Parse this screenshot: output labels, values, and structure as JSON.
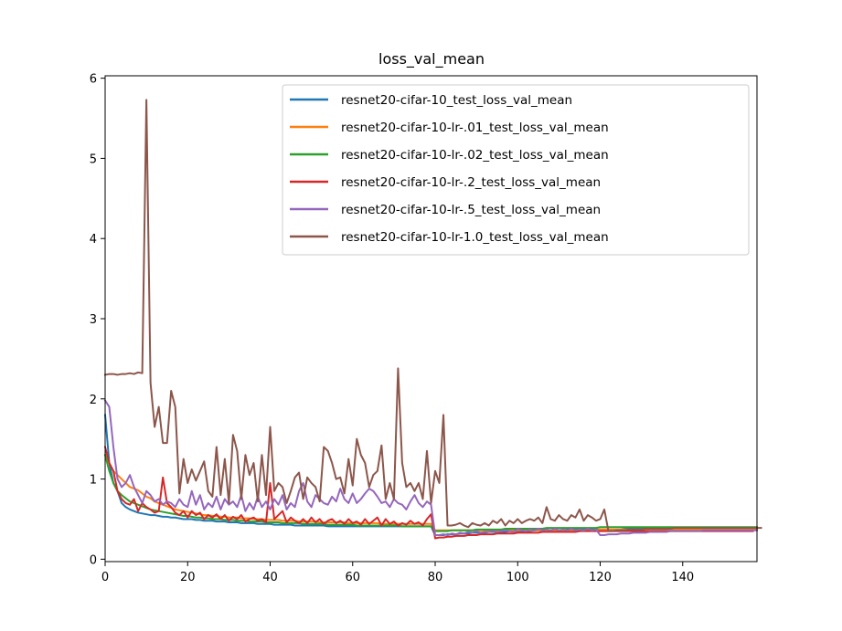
{
  "chart_data": {
    "type": "line",
    "title": "loss_val_mean",
    "xlabel": "",
    "ylabel": "",
    "xlim": [
      0,
      158
    ],
    "ylim": [
      -0.03,
      6.03
    ],
    "xticks": [
      0,
      20,
      40,
      60,
      80,
      100,
      120,
      140
    ],
    "yticks": [
      0,
      1,
      2,
      3,
      4,
      5,
      6
    ],
    "grid": false,
    "legend_position": "top-right",
    "series": [
      {
        "name": "resnet20-cifar-10_test_loss_val_mean",
        "color": "#1f77b4",
        "y": [
          1.8,
          1.2,
          0.95,
          0.85,
          0.7,
          0.65,
          0.62,
          0.6,
          0.58,
          0.57,
          0.56,
          0.55,
          0.55,
          0.54,
          0.53,
          0.53,
          0.52,
          0.52,
          0.51,
          0.5,
          0.5,
          0.5,
          0.49,
          0.49,
          0.48,
          0.48,
          0.48,
          0.47,
          0.47,
          0.47,
          0.46,
          0.46,
          0.46,
          0.45,
          0.45,
          0.45,
          0.45,
          0.44,
          0.44,
          0.44,
          0.44,
          0.43,
          0.43,
          0.43,
          0.43,
          0.43,
          0.42,
          0.42,
          0.42,
          0.42,
          0.42,
          0.42,
          0.42,
          0.42,
          0.41,
          0.41,
          0.41,
          0.41,
          0.41,
          0.41,
          0.41,
          0.41,
          0.41,
          0.41,
          0.41,
          0.41,
          0.41,
          0.41,
          0.41,
          0.41,
          0.41,
          0.41,
          0.41,
          0.41,
          0.41,
          0.41,
          0.41,
          0.41,
          0.41,
          0.41,
          0.3,
          0.3,
          0.3,
          0.31,
          0.31,
          0.31,
          0.32,
          0.32,
          0.32,
          0.33,
          0.33,
          0.33,
          0.33,
          0.34,
          0.34,
          0.34,
          0.34,
          0.34,
          0.35,
          0.35,
          0.35,
          0.35,
          0.35,
          0.35,
          0.36,
          0.36,
          0.36,
          0.36,
          0.36,
          0.36,
          0.36,
          0.36,
          0.37,
          0.37,
          0.37,
          0.37,
          0.37,
          0.37,
          0.37,
          0.37,
          0.37,
          0.37,
          0.37,
          0.37,
          0.37,
          0.37,
          0.38,
          0.38,
          0.38,
          0.38,
          0.38,
          0.38,
          0.38,
          0.38,
          0.38,
          0.38,
          0.38,
          0.38,
          0.38,
          0.38,
          0.38,
          0.38,
          0.38,
          0.38,
          0.38,
          0.38,
          0.38,
          0.38,
          0.38,
          0.38,
          0.38,
          0.38,
          0.38,
          0.38,
          0.38,
          0.38,
          0.38,
          0.38
        ]
      },
      {
        "name": "resnet20-cifar-10-lr-.01_test_loss_val_mean",
        "color": "#ff7f0e",
        "y": [
          1.3,
          1.2,
          1.1,
          1.05,
          1.0,
          0.95,
          0.9,
          0.88,
          0.86,
          0.82,
          0.78,
          0.76,
          0.72,
          0.7,
          0.68,
          0.66,
          0.64,
          0.62,
          0.61,
          0.6,
          0.59,
          0.58,
          0.57,
          0.56,
          0.55,
          0.55,
          0.54,
          0.54,
          0.53,
          0.53,
          0.52,
          0.52,
          0.52,
          0.51,
          0.51,
          0.51,
          0.5,
          0.5,
          0.5,
          0.49,
          0.49,
          0.49,
          0.49,
          0.48,
          0.48,
          0.48,
          0.48,
          0.47,
          0.47,
          0.47,
          0.47,
          0.47,
          0.46,
          0.46,
          0.46,
          0.46,
          0.46,
          0.46,
          0.46,
          0.45,
          0.45,
          0.45,
          0.45,
          0.45,
          0.45,
          0.45,
          0.45,
          0.44,
          0.44,
          0.44,
          0.44,
          0.44,
          0.44,
          0.44,
          0.44,
          0.44,
          0.44,
          0.44,
          0.44,
          0.44,
          0.36,
          0.36,
          0.36,
          0.36,
          0.36,
          0.36,
          0.36,
          0.36,
          0.36,
          0.36,
          0.36,
          0.36,
          0.36,
          0.36,
          0.36,
          0.36,
          0.36,
          0.36,
          0.36,
          0.36,
          0.36,
          0.36,
          0.36,
          0.36,
          0.36,
          0.36,
          0.36,
          0.36,
          0.36,
          0.36,
          0.36,
          0.36,
          0.36,
          0.36,
          0.36,
          0.36,
          0.36,
          0.36,
          0.36,
          0.36,
          0.37,
          0.37,
          0.37,
          0.37,
          0.37,
          0.37,
          0.37,
          0.37,
          0.37,
          0.37,
          0.37,
          0.37,
          0.37,
          0.37,
          0.37,
          0.37,
          0.37,
          0.37,
          0.37,
          0.37,
          0.37,
          0.37,
          0.37,
          0.37,
          0.37,
          0.37,
          0.37,
          0.37,
          0.37,
          0.37,
          0.37,
          0.37,
          0.37,
          0.37,
          0.37,
          0.37,
          0.37,
          0.37,
          0.37
        ]
      },
      {
        "name": "resnet20-cifar-10-lr-.02_test_loss_val_mean",
        "color": "#2ca02c",
        "y": [
          1.3,
          1.1,
          0.95,
          0.85,
          0.8,
          0.76,
          0.72,
          0.7,
          0.68,
          0.66,
          0.64,
          0.62,
          0.61,
          0.6,
          0.59,
          0.58,
          0.57,
          0.56,
          0.55,
          0.54,
          0.54,
          0.53,
          0.52,
          0.52,
          0.51,
          0.51,
          0.5,
          0.5,
          0.5,
          0.49,
          0.49,
          0.49,
          0.48,
          0.48,
          0.48,
          0.47,
          0.47,
          0.47,
          0.47,
          0.46,
          0.46,
          0.46,
          0.46,
          0.45,
          0.45,
          0.45,
          0.45,
          0.45,
          0.44,
          0.44,
          0.44,
          0.44,
          0.44,
          0.44,
          0.43,
          0.43,
          0.43,
          0.43,
          0.43,
          0.43,
          0.43,
          0.42,
          0.42,
          0.42,
          0.42,
          0.42,
          0.42,
          0.42,
          0.42,
          0.42,
          0.42,
          0.42,
          0.41,
          0.41,
          0.41,
          0.41,
          0.41,
          0.41,
          0.41,
          0.41,
          0.35,
          0.35,
          0.35,
          0.35,
          0.36,
          0.36,
          0.36,
          0.36,
          0.36,
          0.36,
          0.37,
          0.37,
          0.37,
          0.37,
          0.37,
          0.37,
          0.37,
          0.38,
          0.38,
          0.38,
          0.38,
          0.38,
          0.38,
          0.38,
          0.38,
          0.38,
          0.38,
          0.39,
          0.39,
          0.39,
          0.39,
          0.39,
          0.39,
          0.39,
          0.39,
          0.39,
          0.39,
          0.39,
          0.39,
          0.39,
          0.4,
          0.4,
          0.4,
          0.4,
          0.4,
          0.4,
          0.4,
          0.4,
          0.4,
          0.4,
          0.4,
          0.4,
          0.4,
          0.4,
          0.4,
          0.4,
          0.4,
          0.4,
          0.4,
          0.4,
          0.4,
          0.4,
          0.4,
          0.4,
          0.4,
          0.4,
          0.4,
          0.4,
          0.4,
          0.4,
          0.4,
          0.4,
          0.4,
          0.4,
          0.4,
          0.4,
          0.4,
          0.4,
          0.4
        ]
      },
      {
        "name": "resnet20-cifar-10-lr-.2_test_loss_val_mean",
        "color": "#d62728",
        "y": [
          1.4,
          1.2,
          1.1,
          0.85,
          0.75,
          0.7,
          0.68,
          0.75,
          0.6,
          0.7,
          0.65,
          0.62,
          0.58,
          0.6,
          1.02,
          0.7,
          0.65,
          0.58,
          0.55,
          0.6,
          0.52,
          0.6,
          0.55,
          0.58,
          0.5,
          0.55,
          0.52,
          0.56,
          0.5,
          0.55,
          0.48,
          0.53,
          0.5,
          0.55,
          0.47,
          0.5,
          0.52,
          0.48,
          0.5,
          0.46,
          0.95,
          0.5,
          0.55,
          0.6,
          0.46,
          0.52,
          0.48,
          0.45,
          0.5,
          0.45,
          0.52,
          0.46,
          0.5,
          0.44,
          0.48,
          0.5,
          0.45,
          0.48,
          0.44,
          0.5,
          0.45,
          0.47,
          0.43,
          0.5,
          0.44,
          0.48,
          0.52,
          0.42,
          0.5,
          0.44,
          0.47,
          0.42,
          0.45,
          0.43,
          0.48,
          0.44,
          0.46,
          0.42,
          0.5,
          0.56,
          0.26,
          0.27,
          0.27,
          0.28,
          0.28,
          0.29,
          0.29,
          0.29,
          0.3,
          0.3,
          0.3,
          0.31,
          0.31,
          0.31,
          0.31,
          0.32,
          0.32,
          0.32,
          0.32,
          0.32,
          0.33,
          0.33,
          0.33,
          0.33,
          0.33,
          0.33,
          0.34,
          0.34,
          0.34,
          0.34,
          0.34,
          0.34,
          0.34,
          0.34,
          0.34,
          0.35,
          0.35,
          0.35,
          0.35,
          0.35,
          0.35,
          0.35,
          0.35,
          0.35,
          0.35,
          0.35,
          0.35,
          0.35,
          0.35,
          0.35,
          0.35,
          0.35,
          0.35,
          0.35,
          0.35,
          0.35,
          0.35,
          0.35,
          0.35,
          0.35,
          0.35,
          0.35,
          0.35,
          0.35,
          0.35,
          0.35,
          0.35,
          0.35,
          0.35,
          0.35,
          0.35,
          0.35,
          0.35,
          0.35,
          0.35,
          0.35,
          0.35,
          0.35
        ]
      },
      {
        "name": "resnet20-cifar-10-lr-.5_test_loss_val_mean",
        "color": "#9467bd",
        "y": [
          1.98,
          1.9,
          1.4,
          1.0,
          0.9,
          0.95,
          1.05,
          0.9,
          0.8,
          0.7,
          0.85,
          0.8,
          0.72,
          0.75,
          0.68,
          0.72,
          0.7,
          0.65,
          0.75,
          0.68,
          0.65,
          0.85,
          0.68,
          0.8,
          0.62,
          0.7,
          0.65,
          0.78,
          0.62,
          0.75,
          0.68,
          0.72,
          0.65,
          0.8,
          0.6,
          0.7,
          0.62,
          0.78,
          0.65,
          0.72,
          0.62,
          0.75,
          0.68,
          0.8,
          0.62,
          0.7,
          0.65,
          0.85,
          0.95,
          0.72,
          0.65,
          0.8,
          0.75,
          0.7,
          0.68,
          0.78,
          0.72,
          0.88,
          0.75,
          0.7,
          0.82,
          0.7,
          0.75,
          0.82,
          0.88,
          0.85,
          0.78,
          0.7,
          0.72,
          0.65,
          0.75,
          0.7,
          0.68,
          0.62,
          0.72,
          0.8,
          0.7,
          0.65,
          0.72,
          0.68,
          0.3,
          0.3,
          0.31,
          0.3,
          0.32,
          0.31,
          0.33,
          0.32,
          0.34,
          0.33,
          0.35,
          0.33,
          0.34,
          0.34,
          0.35,
          0.34,
          0.35,
          0.36,
          0.35,
          0.34,
          0.38,
          0.36,
          0.35,
          0.37,
          0.36,
          0.38,
          0.36,
          0.37,
          0.36,
          0.38,
          0.36,
          0.37,
          0.36,
          0.38,
          0.36,
          0.37,
          0.36,
          0.38,
          0.36,
          0.37,
          0.3,
          0.3,
          0.31,
          0.31,
          0.31,
          0.32,
          0.32,
          0.32,
          0.33,
          0.33,
          0.33,
          0.33,
          0.34,
          0.34,
          0.34,
          0.34,
          0.34,
          0.35,
          0.35,
          0.35,
          0.35,
          0.35,
          0.35,
          0.35,
          0.35,
          0.36,
          0.36,
          0.36,
          0.36,
          0.36,
          0.36,
          0.36,
          0.36,
          0.36,
          0.36,
          0.36,
          0.36,
          0.36,
          0.36
        ]
      },
      {
        "name": "resnet20-cifar-10-lr-1.0_test_loss_val_mean",
        "color": "#8c564b",
        "y": [
          2.3,
          2.31,
          2.31,
          2.3,
          2.31,
          2.31,
          2.32,
          2.31,
          2.33,
          2.32,
          5.73,
          2.2,
          1.65,
          1.9,
          1.45,
          1.45,
          2.1,
          1.9,
          0.82,
          1.25,
          0.95,
          1.12,
          0.98,
          1.1,
          1.22,
          0.85,
          0.78,
          1.4,
          0.8,
          1.25,
          0.7,
          1.55,
          1.35,
          0.75,
          1.3,
          1.05,
          1.2,
          0.72,
          1.3,
          0.8,
          1.65,
          0.85,
          0.95,
          0.9,
          0.7,
          0.85,
          1.02,
          1.08,
          0.75,
          1.02,
          0.95,
          0.9,
          0.72,
          1.4,
          1.35,
          1.2,
          1.0,
          1.02,
          0.82,
          1.25,
          0.92,
          1.5,
          1.3,
          1.2,
          0.9,
          1.05,
          1.1,
          1.42,
          0.75,
          0.95,
          0.75,
          2.38,
          1.2,
          0.9,
          0.95,
          0.85,
          0.95,
          0.75,
          1.35,
          0.7,
          1.1,
          0.95,
          1.8,
          0.42,
          0.42,
          0.43,
          0.45,
          0.42,
          0.4,
          0.45,
          0.43,
          0.42,
          0.45,
          0.42,
          0.48,
          0.45,
          0.5,
          0.42,
          0.48,
          0.45,
          0.5,
          0.45,
          0.48,
          0.5,
          0.48,
          0.52,
          0.45,
          0.65,
          0.5,
          0.48,
          0.55,
          0.5,
          0.48,
          0.55,
          0.52,
          0.62,
          0.48,
          0.55,
          0.52,
          0.48,
          0.5,
          0.62,
          0.35,
          0.35,
          0.36,
          0.36,
          0.36,
          0.37,
          0.37,
          0.37,
          0.37,
          0.38,
          0.38,
          0.38,
          0.38,
          0.38,
          0.38,
          0.38,
          0.39,
          0.39,
          0.39,
          0.39,
          0.39,
          0.39,
          0.39,
          0.39,
          0.39,
          0.39,
          0.39,
          0.39,
          0.39,
          0.39,
          0.39,
          0.39,
          0.39,
          0.39,
          0.39,
          0.39,
          0.39,
          0.39
        ]
      }
    ]
  }
}
